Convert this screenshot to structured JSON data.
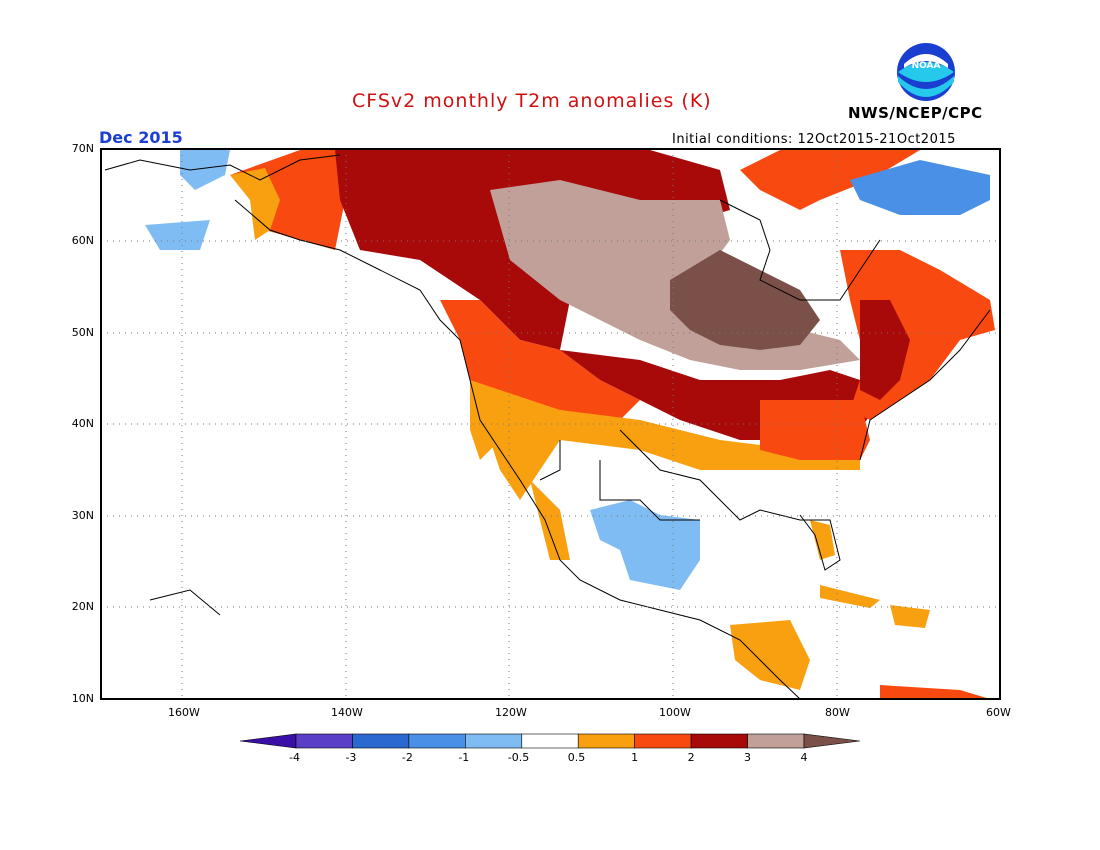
{
  "header": {
    "title": "CFSv2 monthly T2m anomalies (K)",
    "title_color": "#d01010",
    "date": "Dec 2015",
    "date_color": "#1a3fd0",
    "initial_conditions": "Initial conditions: 12Oct2015-21Oct2015",
    "agency": "NWS/NCEP/CPC",
    "logo_text": "NOAA"
  },
  "map": {
    "type": "anomaly_map",
    "region": "North America",
    "lon_range": [
      -170,
      -60
    ],
    "lat_range": [
      10,
      70
    ],
    "lat_labels": [
      "70N",
      "60N",
      "50N",
      "40N",
      "30N",
      "20N",
      "10N"
    ],
    "lon_labels": [
      "160W",
      "140W",
      "120W",
      "100W",
      "80W",
      "60W"
    ],
    "grid": "dotted"
  },
  "colorbar": {
    "labels": [
      "-4",
      "-3",
      "-2",
      "-1",
      "-0.5",
      "0.5",
      "1",
      "2",
      "3",
      "4"
    ],
    "colors": [
      "#3a0fa8",
      "#5a3ec8",
      "#2a6ad0",
      "#4a90e6",
      "#80bcf4",
      "#ffffff",
      "#f8a010",
      "#f84a10",
      "#a80a0a",
      "#c0a098",
      "#7a5048"
    ]
  }
}
